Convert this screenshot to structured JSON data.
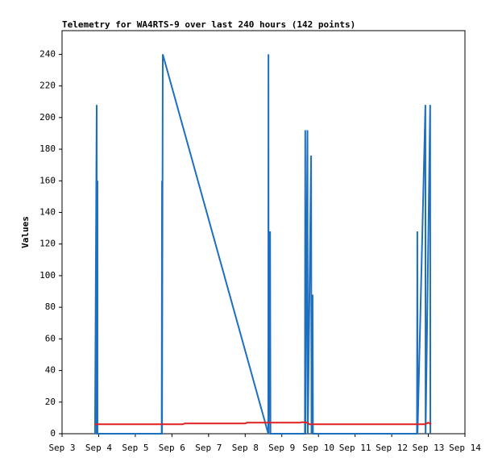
{
  "chart_data": {
    "type": "line",
    "title": "Telemetry for WA4RTS-9 over last 240 hours (142 points)",
    "y_label": "Values",
    "xlim": [
      3,
      14
    ],
    "xticks": [
      {
        "value": 3,
        "label": "Sep 3"
      },
      {
        "value": 4,
        "label": "Sep 4"
      },
      {
        "value": 5,
        "label": "Sep 5"
      },
      {
        "value": 6,
        "label": "Sep 6"
      },
      {
        "value": 7,
        "label": "Sep 7"
      },
      {
        "value": 8,
        "label": "Sep 8"
      },
      {
        "value": 9,
        "label": "Sep 9"
      },
      {
        "value": 10,
        "label": "Sep 10"
      },
      {
        "value": 11,
        "label": "Sep 11"
      },
      {
        "value": 12,
        "label": "Sep 12"
      },
      {
        "value": 13,
        "label": "Sep 13"
      },
      {
        "value": 14,
        "label": "Sep 14"
      }
    ],
    "ylim": [
      0,
      255
    ],
    "yticks": [
      0,
      20,
      40,
      60,
      80,
      100,
      120,
      140,
      160,
      180,
      200,
      220,
      240
    ],
    "series": [
      {
        "color": "#1f6fbf",
        "x": [
          3.9,
          3.946,
          3.946,
          3.968,
          3.968,
          5.72,
          5.73,
          5.73,
          5.75,
          8.63,
          8.635,
          8.64,
          8.68,
          8.69,
          9.63,
          9.64,
          9.645,
          9.7,
          9.71,
          9.8,
          9.81,
          9.84,
          9.85,
          12.69,
          12.7,
          12.705,
          12.92,
          12.925,
          13.05,
          13.055
        ],
        "values": [
          0,
          208,
          0,
          160,
          0,
          0,
          160,
          0,
          240,
          0,
          240,
          0,
          128,
          0,
          0,
          192,
          0,
          192,
          0,
          176,
          0,
          88,
          0,
          0,
          128,
          0,
          208,
          0,
          208,
          0
        ]
      },
      {
        "color": "#e02020",
        "x": [
          3.88,
          6.3,
          6.35,
          8.0,
          8.05,
          9.5,
          9.55,
          9.7,
          9.75,
          12.9,
          13.0,
          13.08
        ],
        "values": [
          6,
          6,
          6.5,
          6.5,
          7,
          7,
          7.3,
          7,
          6,
          6,
          7,
          6
        ]
      }
    ]
  }
}
